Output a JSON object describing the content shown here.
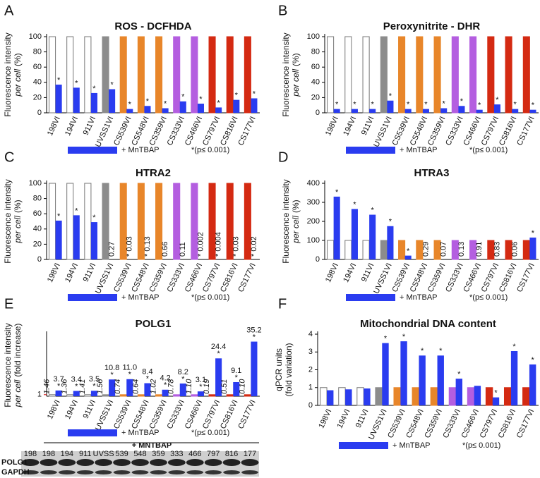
{
  "chart_data": [
    {
      "type": "bar",
      "panel": "A",
      "title": "ROS - DCFHDA",
      "y_label": [
        [
          {
            "text": "Fluorescence intensity"
          }
        ],
        [
          {
            "text": "per cell",
            "italic": true
          },
          {
            "text": "(%)"
          }
        ]
      ],
      "categories": [
        "198VI",
        "194VI",
        "911VI",
        "UVSS1VI",
        "CS539VI",
        "CS548VI",
        "CS359VI",
        "CS333VI",
        "CS466VI",
        "CS797VI",
        "CS816VI",
        "CS177VI"
      ],
      "series": [
        {
          "colors": [
            "#ffffff",
            "#ffffff",
            "#ffffff",
            "#8c8c8c",
            "#e8862a",
            "#e8862a",
            "#e8862a",
            "#b45ee0",
            "#b45ee0",
            "#d42a12",
            "#d42a12",
            "#d42a12"
          ],
          "values": [
            100,
            100,
            100,
            100,
            100,
            100,
            100,
            100,
            100,
            100,
            100,
            100
          ]
        },
        {
          "name": "+ MnTBAP",
          "color": "#2a3cf0",
          "values": [
            37,
            33,
            26,
            31,
            5,
            9,
            6,
            15,
            12,
            7,
            17,
            19
          ]
        }
      ],
      "significant": [
        true,
        true,
        true,
        true,
        true,
        true,
        true,
        true,
        true,
        true,
        true,
        true
      ],
      "star": "*",
      "note": "*(p≤ 0.001)",
      "ylim": [
        0,
        100
      ],
      "yticks": [
        0,
        20,
        40,
        60,
        80,
        100
      ]
    },
    {
      "type": "bar",
      "panel": "B",
      "title": "Peroxynitrite - DHR",
      "y_label": [
        [
          {
            "text": "Fluorescence intensity"
          }
        ],
        [
          {
            "text": "per cell",
            "italic": true
          },
          {
            "text": "(%)"
          }
        ]
      ],
      "categories": [
        "198VI",
        "194VI",
        "911VI",
        "UVSS1VI",
        "CS539VI",
        "CS548VI",
        "CS359VI",
        "CS333VI",
        "CS466VI",
        "CS797VI",
        "CS816VI",
        "CS177VI"
      ],
      "series": [
        {
          "colors": [
            "#ffffff",
            "#ffffff",
            "#ffffff",
            "#8c8c8c",
            "#e8862a",
            "#e8862a",
            "#e8862a",
            "#b45ee0",
            "#b45ee0",
            "#d42a12",
            "#d42a12",
            "#d42a12"
          ],
          "values": [
            100,
            100,
            100,
            100,
            100,
            100,
            100,
            100,
            100,
            100,
            100,
            100
          ]
        },
        {
          "name": "+ MnTBAP",
          "color": "#2a3cf0",
          "values": [
            5,
            5,
            5,
            16,
            5,
            5,
            6,
            9,
            4,
            11,
            5,
            4
          ]
        }
      ],
      "significant": [
        true,
        true,
        true,
        true,
        true,
        true,
        true,
        true,
        true,
        true,
        true,
        true
      ],
      "star": "*",
      "note": "*(p≤ 0.001)",
      "ylim": [
        0,
        100
      ],
      "yticks": [
        0,
        20,
        40,
        60,
        80,
        100
      ]
    },
    {
      "type": "bar",
      "panel": "C",
      "title": "HTRA2",
      "y_label": [
        [
          {
            "text": "Fluorescence intensity"
          }
        ],
        [
          {
            "text": "per cell",
            "italic": true
          },
          {
            "text": "(%)"
          }
        ]
      ],
      "categories": [
        "198VI",
        "194VI",
        "911VI",
        "UVSS1VI",
        "CS539VI",
        "CS548VI",
        "CS359VI",
        "CS333VI",
        "CS466VI",
        "CS797VI",
        "CS816VI",
        "CS177VI"
      ],
      "series": [
        {
          "colors": [
            "#ffffff",
            "#ffffff",
            "#ffffff",
            "#8c8c8c",
            "#e8862a",
            "#e8862a",
            "#e8862a",
            "#b45ee0",
            "#b45ee0",
            "#d42a12",
            "#d42a12",
            "#d42a12"
          ],
          "values": [
            100,
            100,
            100,
            100,
            100,
            100,
            100,
            100,
            100,
            100,
            100,
            100
          ]
        },
        {
          "name": "+ MnTBAP",
          "color": "#2a3cf0",
          "values": [
            51,
            58,
            49,
            null,
            null,
            null,
            null,
            null,
            null,
            null,
            null,
            null
          ]
        }
      ],
      "p_labels": [
        null,
        null,
        null,
        "0.27",
        "* 0.03",
        "* 0.13",
        "0.66",
        "0.11",
        "* 0.002",
        "* 0.004",
        "* 0.03",
        "* 0.02"
      ],
      "significant": [
        true,
        true,
        true,
        false,
        false,
        false,
        false,
        false,
        false,
        false,
        false,
        false
      ],
      "star": "*",
      "note": "*(p≤ 0.001)",
      "ylim": [
        0,
        100
      ],
      "yticks": [
        0,
        20,
        40,
        60,
        80,
        100
      ]
    },
    {
      "type": "bar",
      "panel": "D",
      "title": "HTRA3",
      "y_label": [
        [
          {
            "text": "Fluorescence intensity"
          }
        ],
        [
          {
            "text": "per cell",
            "italic": true
          },
          {
            "text": "(%)"
          }
        ]
      ],
      "categories": [
        "198VI",
        "194VI",
        "911VI",
        "UVSS1VI",
        "CS539VI",
        "CS548VI",
        "CS359VI",
        "CS333VI",
        "CS466VI",
        "CS797VI",
        "CS816VI",
        "CS177VI"
      ],
      "series": [
        {
          "colors": [
            "#ffffff",
            "#ffffff",
            "#ffffff",
            "#8c8c8c",
            "#e8862a",
            "#e8862a",
            "#e8862a",
            "#b45ee0",
            "#b45ee0",
            "#d42a12",
            "#d42a12",
            "#d42a12"
          ],
          "values": [
            100,
            100,
            100,
            100,
            100,
            100,
            100,
            100,
            100,
            100,
            100,
            100
          ]
        },
        {
          "name": "+ MnTBAP",
          "color": "#2a3cf0",
          "values": [
            330,
            265,
            235,
            175,
            20,
            null,
            null,
            null,
            null,
            null,
            null,
            115
          ]
        }
      ],
      "p_labels": [
        null,
        null,
        null,
        null,
        null,
        "0.29",
        "0.07",
        "0.13",
        "0.91",
        "0.83",
        "0.06",
        null
      ],
      "significant": [
        true,
        true,
        true,
        true,
        true,
        false,
        false,
        false,
        false,
        false,
        false,
        true
      ],
      "star": "*",
      "note": "*(p≤ 0.001)",
      "ylim": [
        0,
        400
      ],
      "yticks": [
        0,
        100,
        200,
        300,
        400
      ]
    },
    {
      "type": "bar",
      "panel": "E",
      "title": "POLG1",
      "y_label": [
        [
          {
            "text": "Fluorescence intensity"
          }
        ],
        [
          {
            "text": "per cell",
            "italic": true
          },
          {
            "text": "(fold increase)"
          }
        ]
      ],
      "categories": [
        "198VI",
        "194VI",
        "911VI",
        "UVSS1VI",
        "CS539VI",
        "CS548VI",
        "CS359VI",
        "CS333VI",
        "CS466VI",
        "CS797VI",
        "CS816VI",
        "CS177VI"
      ],
      "series": [
        {
          "colors": [
            "#ffffff",
            "#ffffff",
            "#ffffff",
            "#8c8c8c",
            "#e8862a",
            "#e8862a",
            "#e8862a",
            "#b45ee0",
            "#b45ee0",
            "#d42a12",
            "#d42a12",
            "#d42a12"
          ],
          "values": [
            1,
            1,
            1,
            1,
            1,
            1,
            1,
            1,
            1,
            1,
            1,
            1
          ]
        },
        {
          "name": "+ MnTBAP",
          "color": "#2a3cf0",
          "values": [
            3.7,
            3.4,
            3.5,
            10.8,
            11,
            8.4,
            4.2,
            8.2,
            3.1,
            24.4,
            9.1,
            35.2
          ],
          "value_labels": [
            "3.7",
            "3.4",
            "3.5",
            "10.8",
            "11.0",
            "8.4",
            "4.2",
            "8.2",
            "3.1",
            "24.4",
            "9.1",
            "35.2"
          ]
        }
      ],
      "ratio_labels": [
        "1.46",
        "1.36",
        "1.41",
        "1.56",
        "0.74",
        "0.64",
        "1.02",
        "0.78",
        "1.10",
        "0.19",
        "0.51",
        "0.10"
      ],
      "significant": [
        true,
        true,
        true,
        true,
        true,
        true,
        true,
        true,
        true,
        true,
        true,
        true
      ],
      "star": "*",
      "note": "*(p≤ 0.001)",
      "ylim": [
        0,
        40
      ],
      "yticks": [
        1
      ],
      "ytick_color": "#d00000"
    },
    {
      "type": "bar",
      "panel": "F",
      "title": "Mitochondrial DNA content",
      "y_label": [
        [
          {
            "text": "qPCR units"
          }
        ],
        [
          {
            "text": "(fold variation)"
          }
        ]
      ],
      "categories": [
        "198VI",
        "194VI",
        "911VI",
        "UVSS1VI",
        "CS539VI",
        "CS548VI",
        "CS359VI",
        "CS333VI",
        "CS466VI",
        "CS797VI",
        "CS816VI",
        "CS177VI"
      ],
      "series": [
        {
          "colors": [
            "#ffffff",
            "#ffffff",
            "#ffffff",
            "#8c8c8c",
            "#e8862a",
            "#e8862a",
            "#e8862a",
            "#b45ee0",
            "#b45ee0",
            "#d42a12",
            "#d42a12",
            "#d42a12"
          ],
          "values": [
            1,
            1,
            1,
            1,
            1,
            1,
            1,
            1,
            1,
            1,
            1,
            1
          ]
        },
        {
          "name": "+ MnTBAP",
          "color": "#2a3cf0",
          "values": [
            0.85,
            0.9,
            0.95,
            3.5,
            3.6,
            2.8,
            2.8,
            1.5,
            1.1,
            0.45,
            3.05,
            2.3
          ]
        }
      ],
      "significant": [
        false,
        false,
        false,
        true,
        true,
        true,
        true,
        true,
        false,
        true,
        true,
        true
      ],
      "star": "*",
      "note": "*(p≤ 0.001)",
      "ylim": [
        0,
        4
      ],
      "yticks": [
        0,
        1,
        2,
        3,
        4
      ]
    }
  ],
  "blot": {
    "header": "+ MNTBAP",
    "lanes": [
      "198",
      "198",
      "194",
      "911",
      "UVSS",
      "539",
      "548",
      "359",
      "333",
      "466",
      "797",
      "816",
      "177"
    ],
    "rows": [
      "POLG1",
      "GAPDH"
    ]
  }
}
